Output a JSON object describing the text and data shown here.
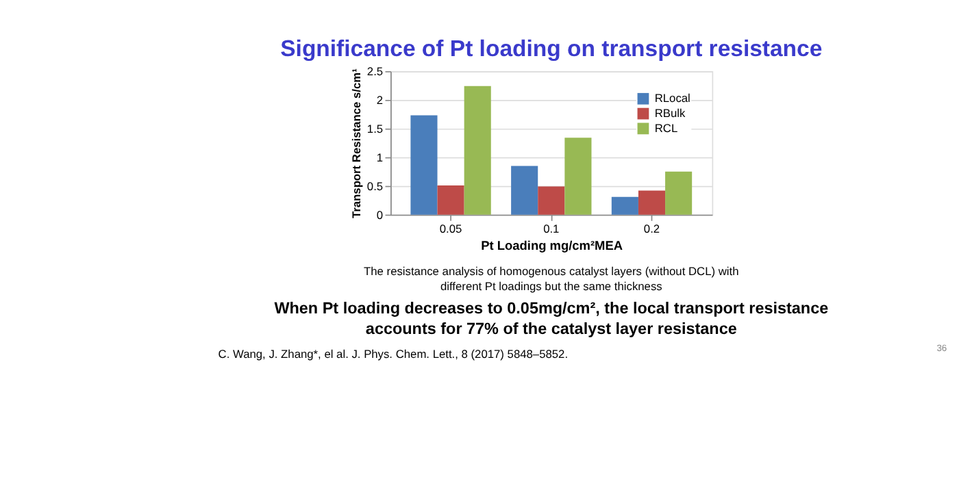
{
  "chart_data": {
    "type": "bar",
    "title": "Significance of Pt loading on transport resistance",
    "xlabel": "Pt Loading mg/cm²MEA",
    "ylabel": "Transport Resistance s/cm¹",
    "categories": [
      "0.05",
      "0.1",
      "0.2"
    ],
    "series": [
      {
        "name": "RLocal",
        "color": "#4a7ebb",
        "values": [
          1.73,
          0.85,
          0.31
        ]
      },
      {
        "name": "RBulk",
        "color": "#be4b48",
        "values": [
          0.51,
          0.49,
          0.42
        ]
      },
      {
        "name": "RCL",
        "color": "#98b954",
        "values": [
          2.24,
          1.34,
          0.75
        ]
      }
    ],
    "ylim": [
      0,
      2.5
    ],
    "yticks": [
      0,
      0.5,
      1,
      1.5,
      2,
      2.5
    ],
    "grid": "y",
    "legend": "top right",
    "annotations": [
      "The resistance analysis of homogenous catalyst layers (without DCL) with",
      "different Pt loadings but the same thickness",
      "When Pt loading decreases to 0.05mg/cm², the local transport resistance",
      "accounts for 77% of the catalyst layer resistance",
      "C. Wang, J. Zhang*, el al. J. Phys. Chem. Lett., 8 (2017) 5848–5852.",
      "36"
    ]
  }
}
